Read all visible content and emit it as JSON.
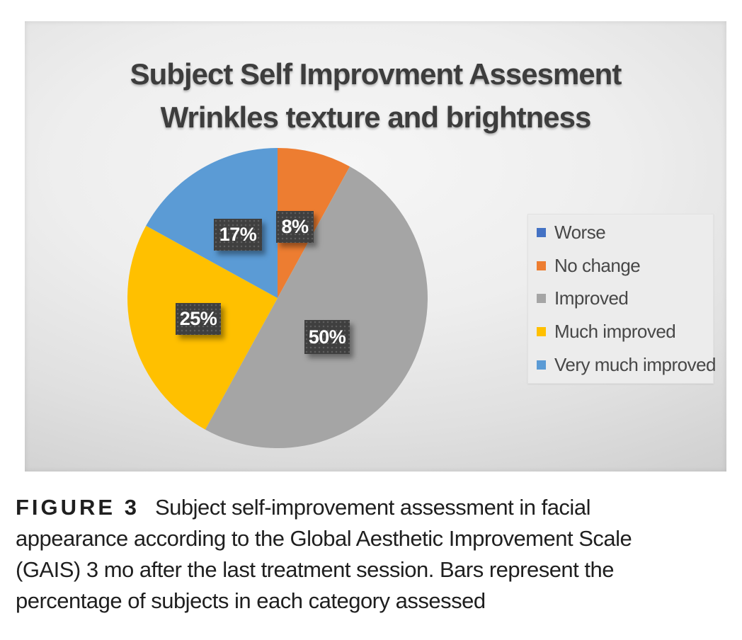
{
  "chart_data": {
    "type": "pie",
    "title": "Subject Self Improvment Assesment Wrinkles texture and brightness",
    "title_lines": [
      "Subject Self Improvment Assesment",
      "Wrinkles texture and brightness"
    ],
    "legend_position": "right",
    "total_pct": 100,
    "start_angle": "top, clockwise",
    "slices": [
      {
        "name": "Worse",
        "value_pct": 0,
        "label": "",
        "color": "#4472C4"
      },
      {
        "name": "No change",
        "value_pct": 8,
        "label": "8%",
        "color": "#ED7D31"
      },
      {
        "name": "Improved",
        "value_pct": 50,
        "label": "50%",
        "color": "#A5A5A5"
      },
      {
        "name": "Much improved",
        "value_pct": 25,
        "label": "25%",
        "color": "#FFC000"
      },
      {
        "name": "Very much improved",
        "value_pct": 17,
        "label": "17%",
        "color": "#5B9BD5"
      }
    ],
    "label_style": {
      "bg": "#3F3F3F",
      "text_color": "#FFFFFF"
    },
    "background": {
      "light": "#F6F6F6",
      "dark": "#C6C6C6"
    }
  },
  "figure": {
    "caption": {
      "label": "FIGURE 3",
      "lines": [
        "Subject self-improvement assessment in facial",
        "appearance according to the Global Aesthetic Improvement Scale",
        "(GAIS) 3 mo after the last treatment session. Bars represent the",
        "percentage of subjects in each category assessed"
      ]
    }
  }
}
